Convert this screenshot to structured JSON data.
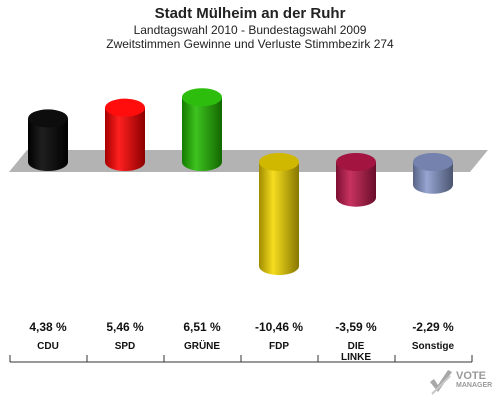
{
  "title": "Stadt Mülheim an der Ruhr",
  "subtitle1": "Landtagswahl 2010 - Bundestagswahl 2009",
  "subtitle2": "Zweitstimmen Gewinne und Verluste Stimmbezirk 274",
  "logo": {
    "name": "VOTE",
    "sub": "MANAGER"
  },
  "chart_data": {
    "type": "bar",
    "title": "Stadt Mülheim an der Ruhr",
    "categories": [
      "CDU",
      "SPD",
      "GRÜNE",
      "FDP",
      "DIE LINKE",
      "Sonstige"
    ],
    "category_lines": [
      [
        "CDU"
      ],
      [
        "SPD"
      ],
      [
        "GRÜNE"
      ],
      [
        "FDP"
      ],
      [
        "DIE",
        "LINKE"
      ],
      [
        "Sonstige"
      ]
    ],
    "values": [
      4.38,
      5.46,
      6.51,
      -10.46,
      -3.59,
      -2.29
    ],
    "value_labels": [
      "4,38 %",
      "5,46 %",
      "6,51 %",
      "-10,46 %",
      "-3,59 %",
      "-2,29 %"
    ],
    "colors": [
      "#000000",
      "#ff0000",
      "#22bb00",
      "#f5d800",
      "#c0174c",
      "#8899cc"
    ],
    "ylim": [
      -10.46,
      6.51
    ],
    "grid": false
  }
}
